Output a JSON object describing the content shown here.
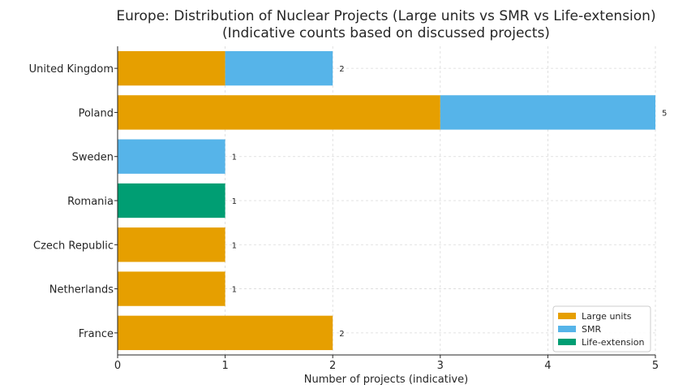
{
  "chart_data": {
    "type": "bar",
    "orientation": "horizontal",
    "stacked": true,
    "title": "Europe: Distribution of Nuclear Projects (Large units vs SMR vs Life-extension)",
    "subtitle": "(Indicative counts based on discussed projects)",
    "xlabel": "Number of projects (indicative)",
    "ylabel": "",
    "xlim": [
      0,
      5
    ],
    "xticks": [
      "0",
      "1",
      "2",
      "3",
      "4",
      "5"
    ],
    "grid": true,
    "legend_position": "lower right",
    "categories": [
      "United Kingdom",
      "Poland",
      "Sweden",
      "Romania",
      "Czech Republic",
      "Netherlands",
      "France"
    ],
    "series": [
      {
        "name": "Large units",
        "color": "#E69F00",
        "values": [
          1,
          3,
          0,
          0,
          1,
          1,
          2
        ]
      },
      {
        "name": "SMR",
        "color": "#56B4E9",
        "values": [
          1,
          2,
          1,
          0,
          0,
          0,
          0
        ]
      },
      {
        "name": "Life-extension",
        "color": "#009E73",
        "values": [
          0,
          0,
          0,
          1,
          0,
          0,
          0
        ]
      }
    ],
    "totals": [
      "2",
      "5",
      "1",
      "1",
      "1",
      "1",
      "2"
    ]
  }
}
